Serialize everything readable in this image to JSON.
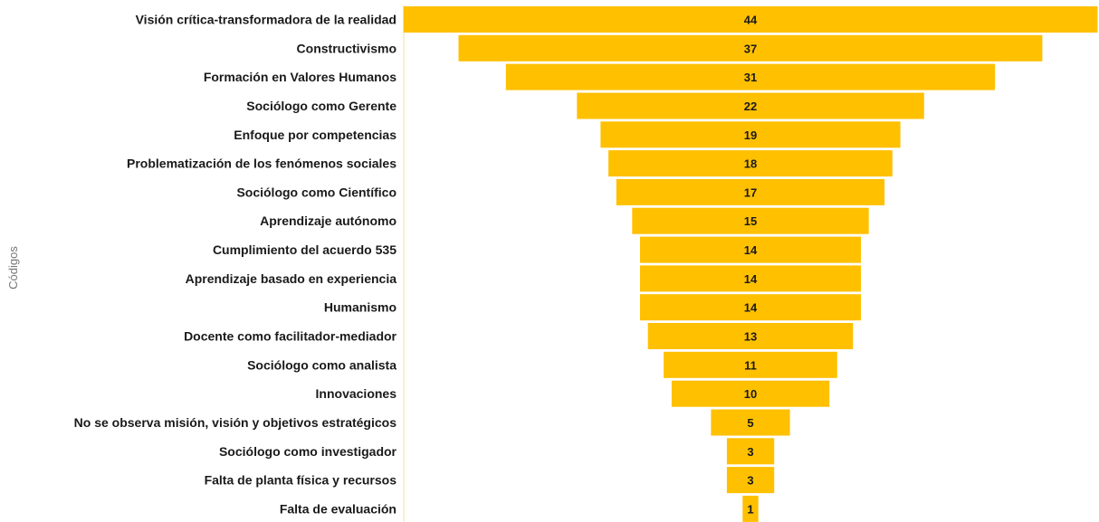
{
  "chart_data": {
    "type": "bar",
    "subtype": "funnel",
    "orientation": "horizontal",
    "ylabel": "Códigos",
    "xlabel": "",
    "title": "",
    "bar_color": "#FFC000",
    "axis_line_color": "#F2E3A6",
    "categories": [
      "Visión crítica-transformadora de la realidad",
      "Constructivismo",
      "Formación en Valores Humanos",
      "Sociólogo como Gerente",
      "Enfoque por competencias",
      "Problematización de los fenómenos sociales",
      "Sociólogo como Científico",
      "Aprendizaje autónomo",
      "Cumplimiento del acuerdo 535",
      "Aprendizaje basado en experiencia",
      "Humanismo",
      "Docente como facilitador-mediador",
      "Sociólogo como analista",
      "Innovaciones",
      "No se observa misión, visión y objetivos estratégicos",
      "Sociólogo como investigador",
      "Falta de planta física y recursos",
      "Falta de evaluación"
    ],
    "values": [
      44,
      37,
      31,
      22,
      19,
      18,
      17,
      15,
      14,
      14,
      14,
      13,
      11,
      10,
      5,
      3,
      3,
      1
    ],
    "data_labels": true,
    "grid": false,
    "legend": "none"
  }
}
